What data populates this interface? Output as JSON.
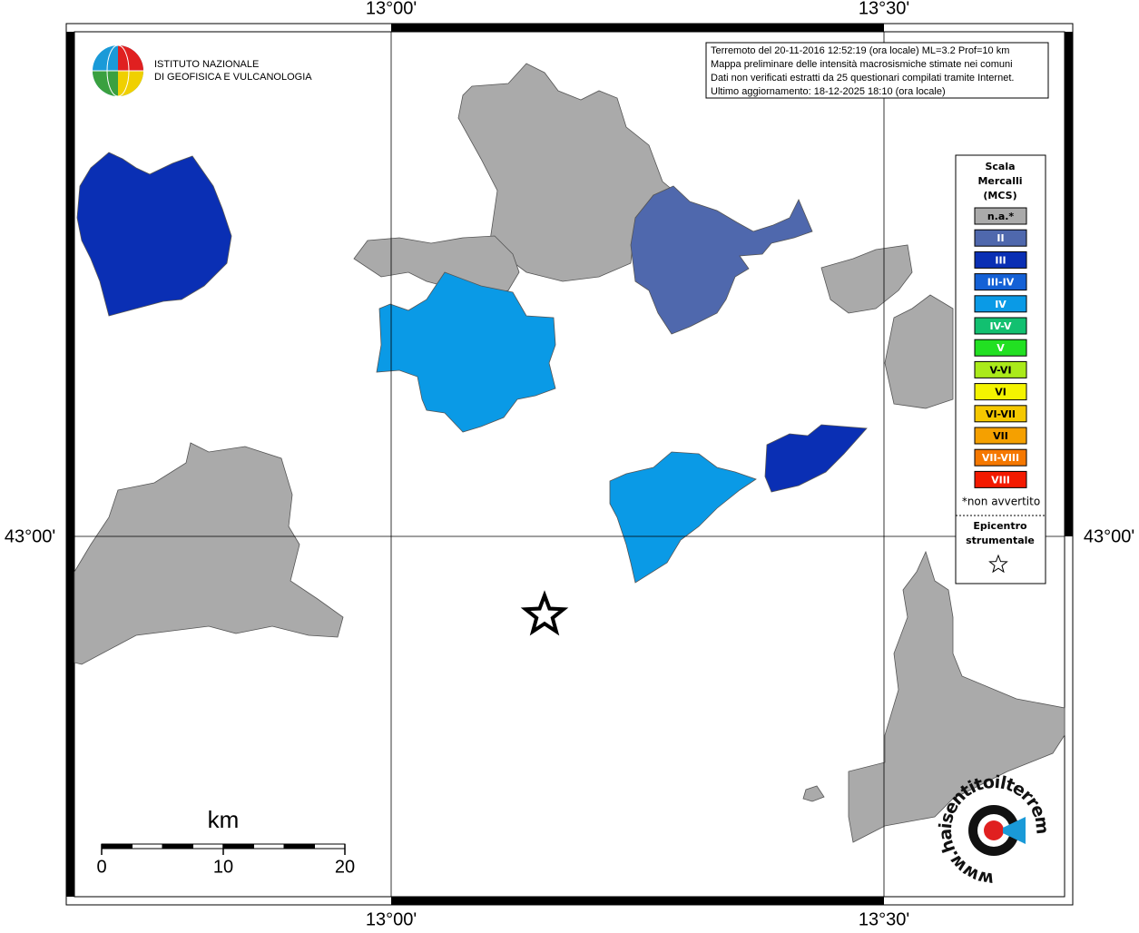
{
  "frame_labels": {
    "lon_left": "13°00'",
    "lon_right": "13°30'",
    "lat": "43°00'"
  },
  "logo": {
    "lines": [
      "ISTITUTO NAZIONALE",
      "DI GEOFISICA E VULCANOLOGIA"
    ]
  },
  "info_box": {
    "lines": [
      "Terremoto del 20-11-2016 12:52:19 (ora locale) ML=3.2 Prof=10 km",
      "Mappa preliminare delle intensità macrosismiche stimate nei comuni",
      "Dati non verificati estratti da 25 questionari compilati tramite Internet.",
      "Ultimo aggiornamento: 18-12-2025 18:10 (ora locale)"
    ]
  },
  "legend": {
    "title_lines": [
      "Scala",
      "Mercalli",
      "(MCS)"
    ],
    "items": [
      {
        "label": "n.a.*",
        "color": "#aaaaaa"
      },
      {
        "label": "II",
        "color": "#4f68ad"
      },
      {
        "label": "III",
        "color": "#0a2fb4"
      },
      {
        "label": "III-IV",
        "color": "#1461d6"
      },
      {
        "label": "IV",
        "color": "#0a9ae6"
      },
      {
        "label": "IV-V",
        "color": "#12c070"
      },
      {
        "label": "V",
        "color": "#22e022"
      },
      {
        "label": "V-VI",
        "color": "#aaea1a"
      },
      {
        "label": "VI",
        "color": "#f4f400"
      },
      {
        "label": "VI-VII",
        "color": "#f5c800"
      },
      {
        "label": "VII",
        "color": "#f5a000"
      },
      {
        "label": "VII-VIII",
        "color": "#f57800"
      },
      {
        "label": "VIII",
        "color": "#f31a00"
      }
    ],
    "note": "*non avvertito",
    "epicenter_lines": [
      "Epicentro",
      "strumentale"
    ]
  },
  "scale_bar": {
    "unit": "km",
    "labels": [
      "0",
      "10",
      "20"
    ]
  },
  "watermark": {
    "text": "www.haisentitoilterremoto.it"
  }
}
